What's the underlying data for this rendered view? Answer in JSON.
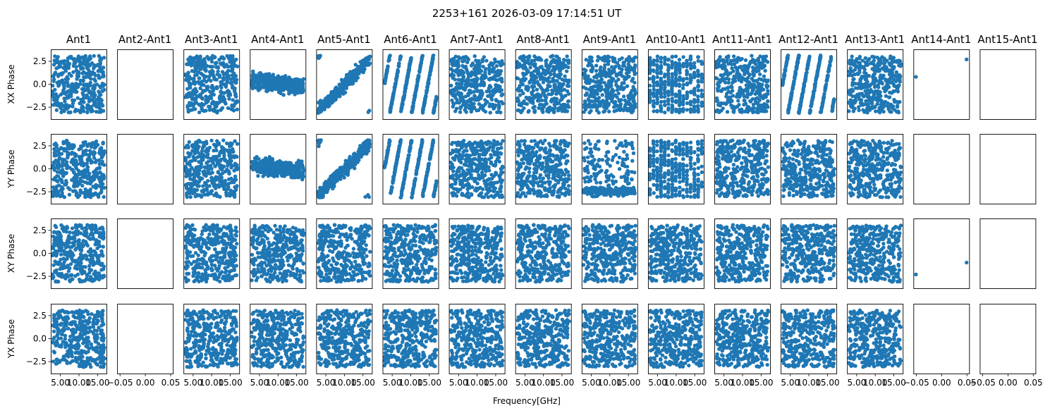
{
  "chart_data": {
    "type": "scatter",
    "title": "2253+161 2026-03-09 17:14:51 UT",
    "xlabel": "Frequency[GHz]",
    "columns": [
      "Ant1",
      "Ant2-Ant1",
      "Ant3-Ant1",
      "Ant4-Ant1",
      "Ant5-Ant1",
      "Ant6-Ant1",
      "Ant7-Ant1",
      "Ant8-Ant1",
      "Ant9-Ant1",
      "Ant10-Ant1",
      "Ant11-Ant1",
      "Ant12-Ant1",
      "Ant13-Ant1",
      "Ant14-Ant1",
      "Ant15-Ant1"
    ],
    "rows": [
      "XX Phase",
      "YY Phase",
      "XY Phase",
      "YX Phase"
    ],
    "ylim": [
      -3.8,
      3.8
    ],
    "yticks": [
      -2.5,
      0.0,
      2.5
    ],
    "ytick_labels": [
      "−2.5",
      "0.0",
      "2.5"
    ],
    "xlim_data": [
      2.5,
      17.5
    ],
    "xticks_data": [
      5.0,
      10.0,
      15.0
    ],
    "xtick_labels_data": [
      "5.00",
      "10.00",
      "15.00"
    ],
    "xlim_empty": [
      -0.055,
      0.055
    ],
    "xticks_empty": [
      -0.05,
      0.0,
      0.05
    ],
    "xtick_labels_empty": [
      "−0.05",
      "0.00",
      "0.05"
    ],
    "marker_color": "#1f77b4",
    "points_per_panel": 380,
    "x_range_ghz": [
      3.0,
      17.0
    ],
    "panels": [
      [
        "random",
        "empty",
        "random",
        "flat",
        "diag",
        "stripes",
        "random",
        "random",
        "random",
        "vstripes",
        "random",
        "stripes",
        "random",
        [
          [
            0.0,
            0.8
          ],
          [
            1.0,
            2.7
          ]
        ],
        "empty"
      ],
      [
        "random",
        "empty",
        "random",
        "flat",
        "diag",
        "stripes",
        "random",
        "random",
        "flat_low",
        "vstripes",
        "random",
        "random",
        "random",
        "empty",
        "empty"
      ],
      [
        "random",
        "empty",
        "random",
        "random",
        "random",
        "random",
        "random",
        "random",
        "random",
        "random",
        "random",
        "random",
        "random",
        [
          [
            0.0,
            -2.3
          ],
          [
            1.0,
            -1.0
          ]
        ],
        "empty"
      ],
      [
        "random",
        "empty",
        "random",
        "random",
        "random",
        "random",
        "random",
        "random",
        "random",
        "random",
        "random",
        "random",
        "random",
        "empty",
        "empty"
      ]
    ]
  }
}
